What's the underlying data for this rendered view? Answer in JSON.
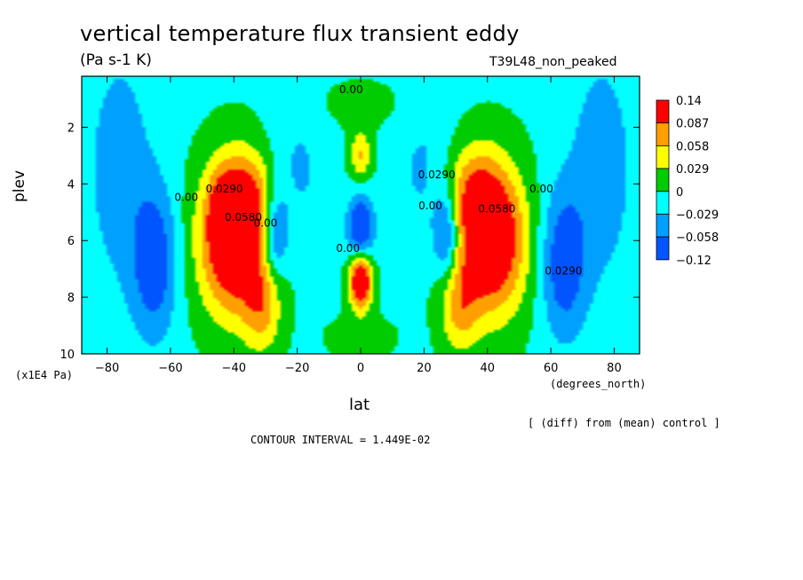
{
  "chart_data": {
    "type": "heatmap",
    "title": "vertical temperature flux transient eddy",
    "units": "(Pa s-1 K)",
    "subtitle": "T39L48_non_peaked",
    "xlabel": "lat",
    "xunits": "(degrees_north)",
    "ylabel": "plev",
    "yunits": "(x1E4 Pa)",
    "xlim": [
      -88,
      88
    ],
    "ylim": [
      10,
      0.2
    ],
    "xticks": [
      -80,
      -60,
      -40,
      -20,
      0,
      20,
      40,
      60,
      80
    ],
    "yticks": [
      2,
      4,
      6,
      8,
      10
    ],
    "note": "[ (diff) from (mean) control ]",
    "contour_interval": "CONTOUR INTERVAL = 1.449E-02",
    "colorbar": {
      "levels": [
        "0.14",
        "0.087",
        "0.058",
        "0.029",
        "0",
        "-0.029",
        "-0.058",
        "-0.12"
      ],
      "colors": [
        "#ff0000",
        "#ff9f00",
        "#ffff00",
        "#00cc00",
        "#00ffff",
        "#00a0ff",
        "#0055ff"
      ]
    },
    "contour_labels": [
      {
        "text": "0.00",
        "lat": -3,
        "plev": 0.8
      },
      {
        "text": "0.0290",
        "lat": -43,
        "plev": 4.3
      },
      {
        "text": "0.00",
        "lat": -55,
        "plev": 4.6
      },
      {
        "text": "0.0580",
        "lat": -37,
        "plev": 5.3
      },
      {
        "text": "0.00",
        "lat": -30,
        "plev": 5.5
      },
      {
        "text": "0.0290",
        "lat": 24,
        "plev": 3.8
      },
      {
        "text": "0.00",
        "lat": 22,
        "plev": 4.9
      },
      {
        "text": "0.0580",
        "lat": 43,
        "plev": 5.0
      },
      {
        "text": "0.00",
        "lat": 57,
        "plev": 4.3
      },
      {
        "text": "0.0290",
        "lat": 64,
        "plev": 7.2
      },
      {
        "text": "0.00",
        "lat": -4,
        "plev": 6.4
      }
    ],
    "fields": [
      {
        "lat": -40,
        "plev": 6.0,
        "a": 11,
        "b": 2.6,
        "v": 0.15
      },
      {
        "lat": -36,
        "plev": 4.4,
        "a": 9,
        "b": 1.6,
        "v": 0.05
      },
      {
        "lat": -44,
        "plev": 4.8,
        "a": 4,
        "b": 1.2,
        "v": 0.03
      },
      {
        "lat": -31,
        "plev": 8.4,
        "a": 6,
        "b": 1.6,
        "v": 0.06
      },
      {
        "lat": 41,
        "plev": 6.0,
        "a": 11,
        "b": 2.6,
        "v": 0.15
      },
      {
        "lat": 35,
        "plev": 4.2,
        "a": 9,
        "b": 1.6,
        "v": 0.05
      },
      {
        "lat": 31,
        "plev": 8.4,
        "a": 6,
        "b": 1.6,
        "v": 0.06
      },
      {
        "lat": 0,
        "plev": 7.4,
        "a": 3.5,
        "b": 1.0,
        "v": 0.16
      },
      {
        "lat": 0,
        "plev": 3.0,
        "a": 3.5,
        "b": 0.9,
        "v": 0.065
      },
      {
        "lat": 0,
        "plev": 5.6,
        "a": 4,
        "b": 1.2,
        "v": -0.1
      },
      {
        "lat": -27,
        "plev": 5.8,
        "a": 4,
        "b": 1.5,
        "v": -0.08
      },
      {
        "lat": 27,
        "plev": 5.8,
        "a": 4,
        "b": 1.5,
        "v": -0.08
      },
      {
        "lat": -65,
        "plev": 6.8,
        "a": 7,
        "b": 2.6,
        "v": -0.075
      },
      {
        "lat": 64,
        "plev": 6.8,
        "a": 7,
        "b": 2.6,
        "v": -0.075
      },
      {
        "lat": -76,
        "plev": 3.5,
        "a": 11,
        "b": 4.5,
        "v": -0.04
      },
      {
        "lat": 76,
        "plev": 3.5,
        "a": 11,
        "b": 4.5,
        "v": -0.04
      },
      {
        "lat": 0,
        "plev": 1.2,
        "a": 13,
        "b": 0.8,
        "v": 0.018
      },
      {
        "lat": -20,
        "plev": 3.6,
        "a": 9,
        "b": 2.5,
        "v": -0.03
      },
      {
        "lat": 20,
        "plev": 3.6,
        "a": 9,
        "b": 2.5,
        "v": -0.03
      },
      {
        "lat": 0,
        "plev": 9.4,
        "a": 10,
        "b": 0.7,
        "v": 0.022
      }
    ]
  }
}
